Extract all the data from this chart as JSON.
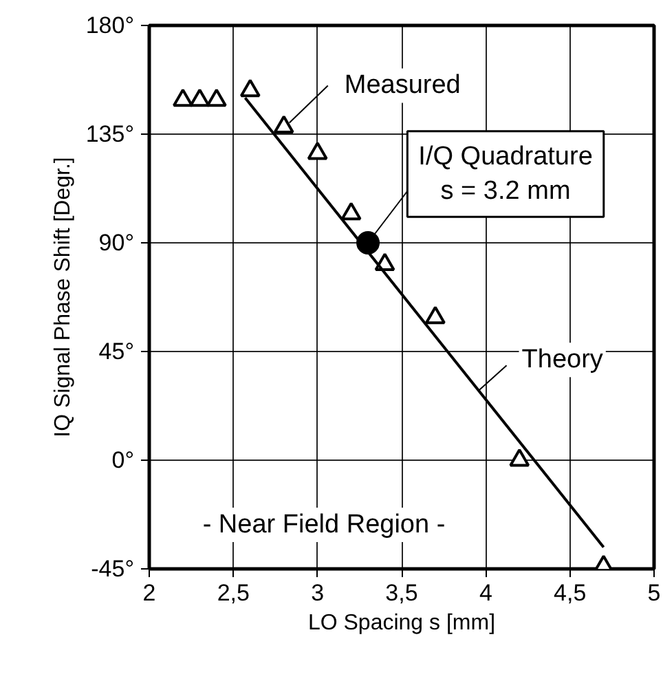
{
  "chart_data": {
    "type": "scatter",
    "xlabel": "LO Spacing s [mm]",
    "ylabel": "IQ Signal Phase Shift [Degr.]",
    "xlim": [
      2,
      5
    ],
    "ylim": [
      -45,
      180
    ],
    "xticks": [
      2,
      {
        "value": 2.5,
        "label": "2,5"
      },
      3,
      {
        "value": 3.5,
        "label": "3,5"
      },
      4,
      {
        "value": 4.5,
        "label": "4,5"
      },
      5
    ],
    "yticks": [
      {
        "value": -45,
        "label": "-45°"
      },
      {
        "value": 0,
        "label": "0°"
      },
      {
        "value": 45,
        "label": "45°"
      },
      {
        "value": 90,
        "label": "90°"
      },
      {
        "value": 135,
        "label": "135°"
      },
      {
        "value": 180,
        "label": "180°"
      }
    ],
    "grid": true,
    "series": [
      {
        "marker": "triangle",
        "color": "#000000",
        "x": [
          2.2,
          2.3,
          2.4,
          2.6,
          2.8,
          3.0,
          3.2,
          3.4,
          3.7,
          4.2,
          4.7
        ],
        "values": [
          149,
          149,
          149,
          153,
          138,
          127,
          102,
          81,
          59,
          0,
          -44
        ]
      },
      {
        "type": "line",
        "marker": "none",
        "line_style": "solid",
        "color": "#000000",
        "x": [
          2.57,
          4.7
        ],
        "values": [
          150,
          -36
        ]
      },
      {
        "marker": "circle",
        "color": "#000000",
        "x": [
          3.3
        ],
        "values": [
          90
        ]
      }
    ],
    "annotations": [
      {
        "text": "Measured",
        "x": 2.8,
        "y": 138
      },
      {
        "text": "I/Q Quadrature\ns = 3.2 mm",
        "x": 3.3,
        "y": 90
      },
      {
        "text": "Theory",
        "x": 3.96,
        "y": 29
      },
      "- Near Field Region -"
    ]
  }
}
